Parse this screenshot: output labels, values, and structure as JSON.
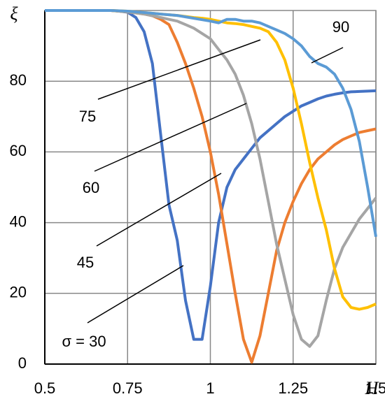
{
  "chart_data": {
    "type": "line",
    "x_label": "H",
    "y_label": "ξ",
    "x": [
      0.5,
      0.525,
      0.55,
      0.575,
      0.6,
      0.625,
      0.65,
      0.675,
      0.7,
      0.725,
      0.75,
      0.775,
      0.8,
      0.825,
      0.85,
      0.875,
      0.9,
      0.925,
      0.95,
      0.975,
      1,
      1.025,
      1.05,
      1.075,
      1.1,
      1.125,
      1.15,
      1.175,
      1.2,
      1.225,
      1.25,
      1.275,
      1.3,
      1.325,
      1.35,
      1.375,
      1.4,
      1.425,
      1.45,
      1.475,
      1.5
    ],
    "series": [
      {
        "name": "σ = 30",
        "color": "#4472c4",
        "values": [
          100,
          100,
          100,
          100,
          100,
          100,
          100,
          100,
          100,
          99.8,
          99.5,
          98,
          94,
          85,
          65,
          45,
          35,
          18,
          7,
          7,
          22,
          40,
          50,
          55,
          58,
          61,
          64,
          66,
          68,
          70,
          71.5,
          73,
          74,
          75,
          75.8,
          76.3,
          76.7,
          77,
          77.1,
          77.2,
          77.3
        ]
      },
      {
        "name": "45",
        "color": "#ed7d31",
        "values": [
          100,
          100,
          100,
          100,
          100,
          100,
          100,
          100,
          100,
          99.8,
          99.6,
          99.3,
          99,
          98.5,
          97.5,
          96,
          91,
          85,
          78,
          70,
          60,
          48,
          34,
          20,
          7,
          0.5,
          8,
          20,
          32,
          40,
          46,
          51,
          55,
          58,
          60,
          62,
          63.5,
          64.5,
          65.5,
          66,
          66.5
        ]
      },
      {
        "name": "60",
        "color": "#a5a5a5",
        "values": [
          100,
          100,
          100,
          100,
          100,
          100,
          100,
          100,
          100,
          99.8,
          99.6,
          99.3,
          99,
          98.5,
          98,
          97.5,
          97,
          96,
          95,
          93.5,
          92,
          89,
          86,
          82,
          76,
          68,
          58,
          46,
          34,
          24,
          14,
          7,
          5,
          8,
          18,
          27,
          33,
          37,
          41,
          44,
          47
        ]
      },
      {
        "name": "75",
        "color": "#ffc000",
        "values": [
          100,
          100,
          100,
          100,
          100,
          100,
          100,
          100,
          100,
          99.9,
          99.8,
          99.6,
          99.4,
          99.2,
          99,
          98.8,
          98.6,
          98.3,
          98,
          97.8,
          97.5,
          97,
          96.5,
          96.3,
          96,
          95.5,
          95,
          94,
          91,
          86,
          78,
          68,
          57,
          47,
          38,
          27,
          19,
          16,
          15.5,
          16,
          17
        ]
      },
      {
        "name": "90",
        "color": "#5b9bd5",
        "values": [
          100,
          100,
          100,
          100,
          100,
          100,
          100,
          100,
          100,
          99.9,
          99.8,
          99.6,
          99.4,
          99.2,
          99,
          98.8,
          98.6,
          98.2,
          97.8,
          97.4,
          97,
          96.5,
          97.5,
          97.5,
          97,
          97,
          96.5,
          95.5,
          94.5,
          93.5,
          92,
          90,
          87,
          85,
          84,
          82,
          78,
          72,
          63,
          50,
          36
        ]
      }
    ],
    "xlim": [
      0.5,
      1.5
    ],
    "ylim": [
      0,
      100
    ],
    "xticks": [
      0.5,
      0.75,
      1,
      1.25,
      1.5
    ],
    "yticks": [
      0,
      20,
      40,
      60,
      80
    ],
    "grid": true
  }
}
